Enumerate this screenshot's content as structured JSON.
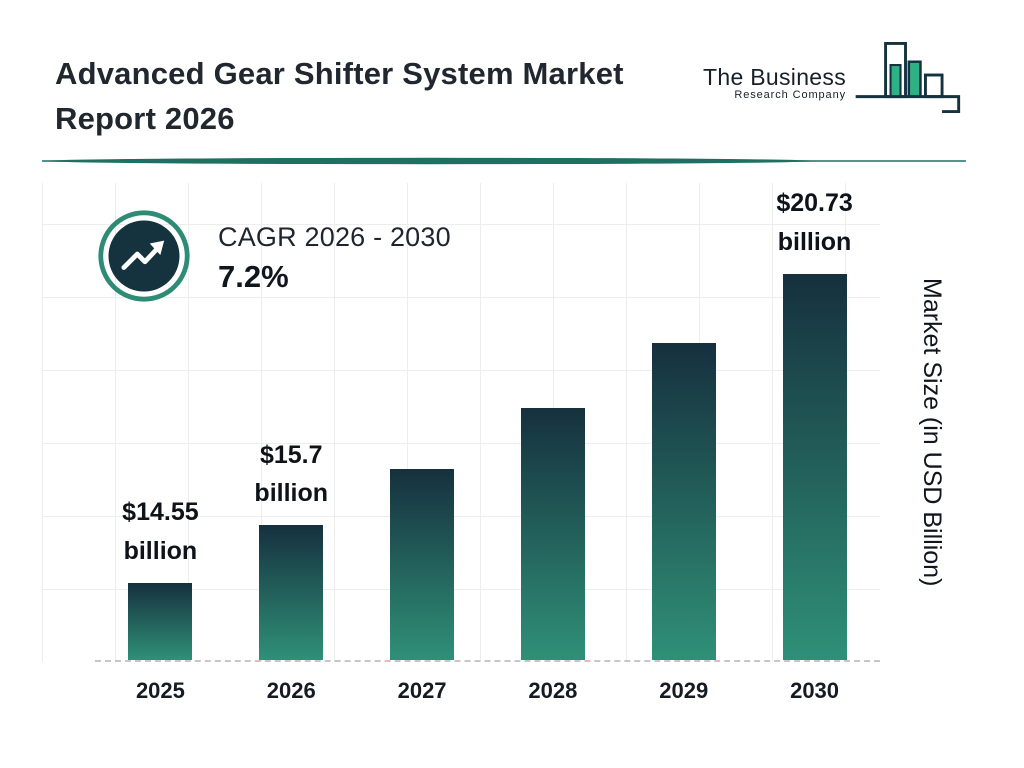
{
  "header": {
    "title_line1": "Advanced Gear Shifter System Market",
    "title_line2": "Report 2026"
  },
  "logo": {
    "line1": "The Business",
    "line2": "Research Company"
  },
  "cagr": {
    "label": "CAGR 2026 - 2030",
    "value": "7.2%"
  },
  "colors": {
    "bar_top": "#16303e",
    "bar_bottom": "#2f9077",
    "accent_teal": "#2e8b74",
    "dark_navy": "#14333f",
    "divider_teal": "#1f6f63"
  },
  "chart_data": {
    "type": "bar",
    "title": "Advanced Gear Shifter System Market Report 2026",
    "categories": [
      "2025",
      "2026",
      "2027",
      "2028",
      "2029",
      "2030"
    ],
    "values": [
      14.55,
      15.7,
      16.83,
      18.04,
      19.34,
      20.73
    ],
    "value_labels": [
      [
        "$14.55",
        "billion"
      ],
      [
        "$15.7",
        "billion"
      ],
      null,
      null,
      null,
      [
        "$20.73",
        "billion"
      ]
    ],
    "xlabel": "",
    "ylabel": "Market Size (in USD Billion)",
    "ylim": [
      13,
      22.5
    ],
    "grid": true,
    "legend": "none",
    "annotations": [
      "CAGR 2026 - 2030 : 7.2%"
    ]
  }
}
